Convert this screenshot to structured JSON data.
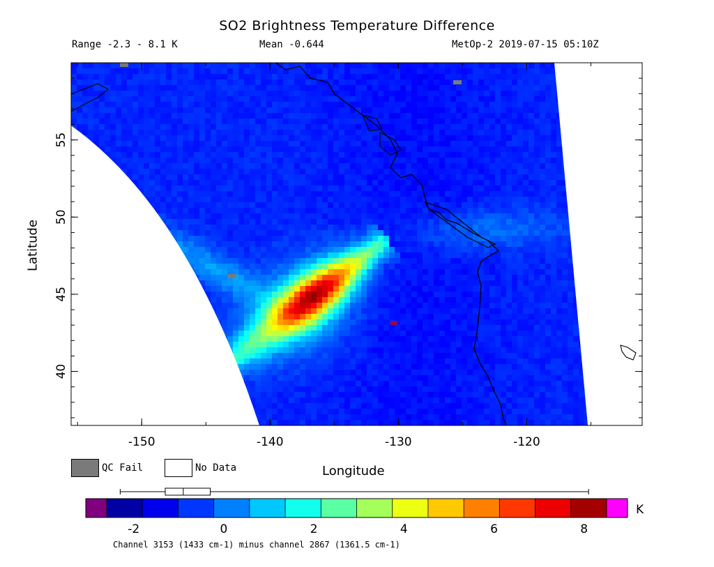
{
  "header": {
    "title": "SO2 Brightness Temperature Difference",
    "range_label": "Range -2.3 - 8.1 K",
    "mean_label": "Mean -0.644",
    "source_label": "MetOp-2 2019-07-15 05:10Z"
  },
  "map": {
    "lon_range": [
      -155.5,
      -111
    ],
    "lat_range": [
      36.5,
      60
    ],
    "xlabel": "Longitude",
    "ylabel": "Latitude",
    "x_ticks": [
      "-150",
      "-140",
      "-130",
      "-120"
    ],
    "y_ticks": [
      "40",
      "45",
      "50",
      "55"
    ],
    "x_tick_values": [
      -150,
      -140,
      -130,
      -120
    ],
    "y_tick_values": [
      40,
      45,
      50,
      55
    ]
  },
  "legend": {
    "qc_fail_label": "QC Fail",
    "qc_fail_color": "#7a7a7a",
    "no_data_label": "No Data",
    "no_data_color": "#ffffff"
  },
  "colorbar": {
    "unit": "K",
    "min": -2.6,
    "max": 8.5,
    "tick_labels": [
      "-2",
      "0",
      "2",
      "4",
      "6",
      "8"
    ],
    "tick_values": [
      -2,
      0,
      2,
      4,
      6,
      8
    ],
    "under_color": "#800080",
    "over_color": "#ff00ff",
    "boxplot": {
      "min": -2.3,
      "q1": -1.3,
      "median": -0.9,
      "q3": -0.3,
      "max": 8.1
    }
  },
  "footnote": "Channel 3153 (1433 cm-1) minus channel 2867 (1361.5 cm-1)"
}
